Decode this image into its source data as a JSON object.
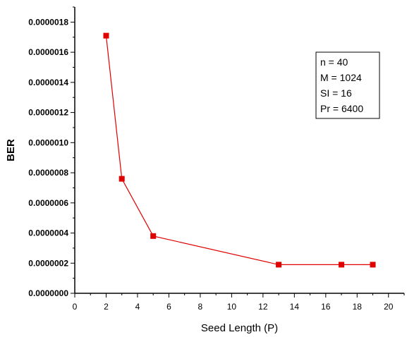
{
  "chart_data": {
    "type": "line",
    "xlabel": "Seed Length (P)",
    "ylabel": "BER",
    "xlim": [
      0,
      21
    ],
    "ylim": [
      0,
      1.9e-06
    ],
    "x_ticks": [
      "0",
      "2",
      "4",
      "6",
      "8",
      "10",
      "12",
      "14",
      "16",
      "18",
      "20"
    ],
    "x_tick_values": [
      0,
      2,
      4,
      6,
      8,
      10,
      12,
      14,
      16,
      18,
      20
    ],
    "y_ticks": [
      "0.0000000",
      "0.0000002",
      "0.0000004",
      "0.0000006",
      "0.0000008",
      "0.0000010",
      "0.0000012",
      "0.0000014",
      "0.0000016",
      "0.0000018"
    ],
    "y_tick_values": [
      0,
      2e-07,
      4e-07,
      6e-07,
      8e-07,
      1e-06,
      1.2e-06,
      1.4e-06,
      1.6e-06,
      1.8e-06
    ],
    "grid": false,
    "legend_placement": "top-right",
    "parameters": [
      "n = 40",
      "M = 1024",
      "SI = 16",
      "Pr = 6400"
    ],
    "series": [
      {
        "color": "#e00000",
        "marker": "square",
        "x": [
          2,
          3,
          5,
          13,
          17,
          19
        ],
        "y": [
          1.71e-06,
          7.6e-07,
          3.8e-07,
          1.9e-07,
          1.9e-07,
          1.9e-07
        ]
      }
    ]
  }
}
